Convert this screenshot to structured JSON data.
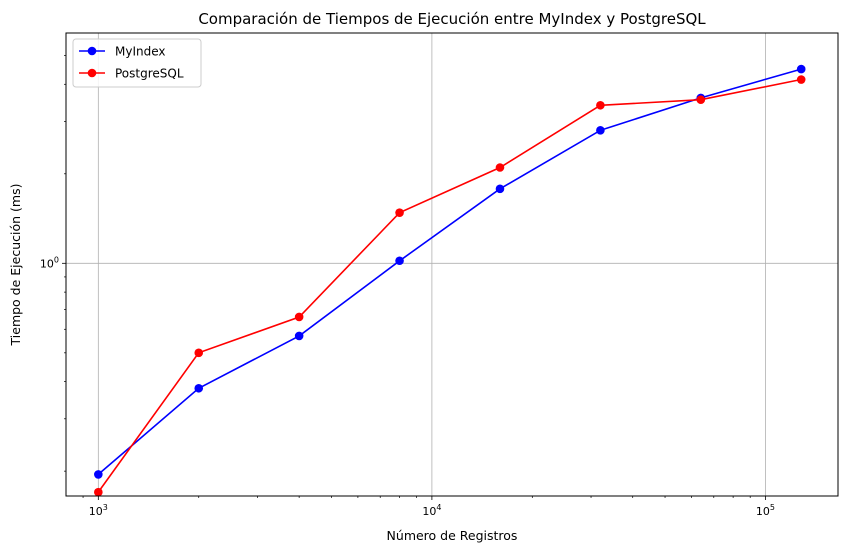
{
  "chart_data": {
    "type": "line",
    "title": "Comparación de Tiempos de Ejecución entre MyIndex y PostgreSQL",
    "xlabel": "Número de Registros",
    "ylabel": "Tiempo de Ejecución (ms)",
    "x_scale": "log",
    "y_scale": "log",
    "xlim": [
      800,
      165000
    ],
    "ylim": [
      0.165,
      5.95
    ],
    "grid": true,
    "legend_position": "top-left",
    "x_ticks": [
      {
        "base": "10",
        "exp": "3",
        "value": 1000
      },
      {
        "base": "10",
        "exp": "4",
        "value": 10000
      },
      {
        "base": "10",
        "exp": "5",
        "value": 100000
      }
    ],
    "y_ticks": [
      {
        "base": "10",
        "exp": "0",
        "value": 1
      }
    ],
    "x": [
      1000,
      2000,
      4000,
      8000,
      16000,
      32000,
      64000,
      128000
    ],
    "series": [
      {
        "name": "MyIndex",
        "color": "#0000ff",
        "values": [
          0.195,
          0.38,
          0.57,
          1.02,
          1.78,
          2.8,
          3.6,
          4.5
        ]
      },
      {
        "name": "PostgreSQL",
        "color": "#ff0000",
        "values": [
          0.17,
          0.5,
          0.66,
          1.48,
          2.1,
          3.4,
          3.55,
          4.15
        ]
      }
    ]
  }
}
